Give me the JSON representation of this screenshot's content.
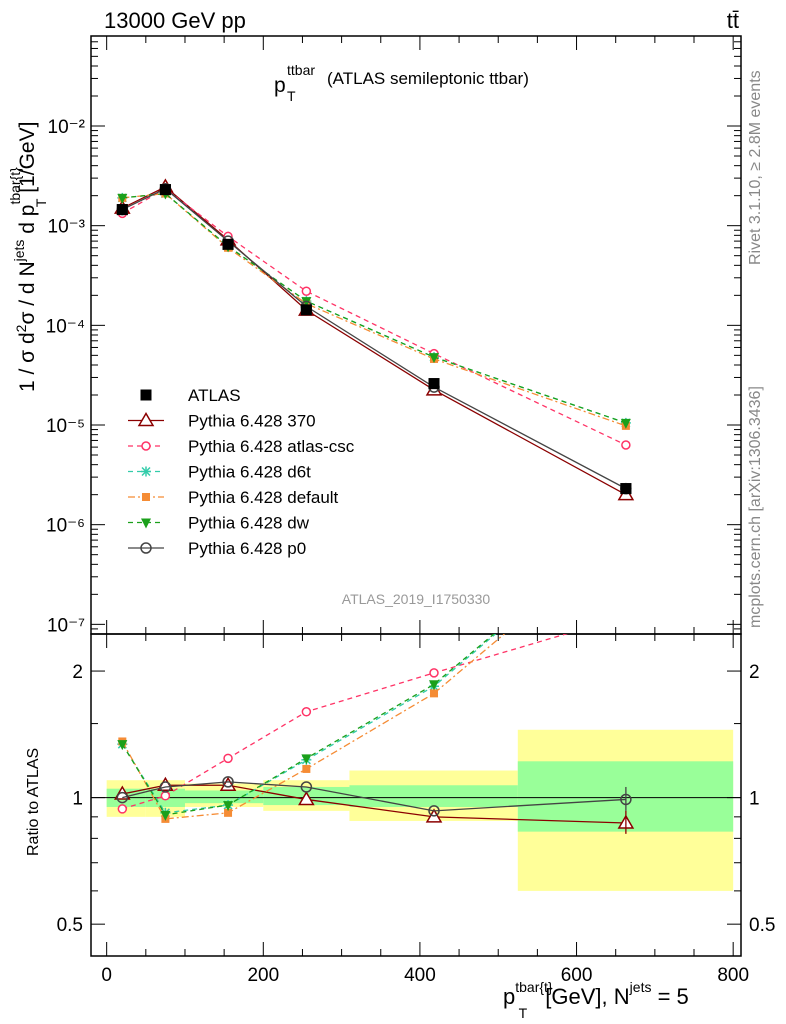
{
  "header": {
    "energy_label": "13000 GeV pp",
    "process_label": "tt̄"
  },
  "plot_title": {
    "main": "p",
    "sup": "ttbar",
    "sub": "T",
    "rest": "(ATLAS semileptonic ttbar)"
  },
  "side_labels": {
    "rivet": "Rivet 3.1.10, ≥ 2.8M events",
    "mcplots": "mcplots.cern.ch [arXiv:1306.3436]"
  },
  "analysis_tag": "ATLAS_2019_I1750330",
  "colors": {
    "atlas": "#000000",
    "p370": "#8b0000",
    "atlas_csc": "#ff3366",
    "d6t": "#33ccaa",
    "default": "#f58c35",
    "dw": "#1ba01b",
    "p0": "#444444",
    "band_inner": "#99ff99",
    "band_outer": "#ffff99"
  },
  "chart_data": [
    {
      "type": "line",
      "yscale": "log",
      "ylabel": "1 / σ d²σ / d N^jets d p_T^tbar{t} [1/GeV]",
      "ytick_labels": [
        "10⁻²",
        "10⁻³",
        "10⁻⁴",
        "10⁻⁵",
        "10⁻⁶",
        "10⁻⁷"
      ],
      "xlim": [
        -20,
        810
      ],
      "ylim": [
        8e-08,
        0.08
      ],
      "x": [
        20,
        75,
        155,
        255,
        418,
        663
      ],
      "series": [
        {
          "name": "ATLAS",
          "key": "atlas",
          "marker": "square",
          "values": [
            0.00145,
            0.0023,
            0.00065,
            0.000143,
            2.6e-05,
            2.3e-06
          ]
        },
        {
          "name": "Pythia 6.428 370",
          "key": "p370",
          "marker": "triangle",
          "values": [
            0.0015,
            0.00245,
            0.00072,
            0.000142,
            2.25e-05,
            2e-06
          ]
        },
        {
          "name": "Pythia 6.428 atlas-csc",
          "key": "atlas_csc",
          "marker": "circle-open",
          "values": [
            0.00133,
            0.00235,
            0.00078,
            0.00022,
            5.2e-05,
            6.3e-06
          ]
        },
        {
          "name": "Pythia 6.428 d6t",
          "key": "d6t",
          "marker": "star",
          "values": [
            0.0019,
            0.0021,
            0.00062,
            0.000175,
            4.8e-05,
            1.05e-05
          ]
        },
        {
          "name": "Pythia 6.428 default",
          "key": "default",
          "marker": "square-small",
          "values": [
            0.0019,
            0.0021,
            0.0006,
            0.000165,
            4.6e-05,
            9.8e-06
          ]
        },
        {
          "name": "Pythia 6.428 dw",
          "key": "dw",
          "marker": "triangle-down",
          "values": [
            0.0019,
            0.0021,
            0.00062,
            0.000175,
            4.8e-05,
            1.05e-05
          ]
        },
        {
          "name": "Pythia 6.428 p0",
          "key": "p0",
          "marker": "circle",
          "values": [
            0.00145,
            0.00235,
            0.0007,
            0.000155,
            2.4e-05,
            2.3e-06
          ]
        }
      ]
    },
    {
      "type": "line",
      "yscale": "log",
      "ylabel": "Ratio to ATLAS",
      "xlabel": "p_T^tbar{t} [GeV], N^jets = 5",
      "ylim": [
        0.42,
        2.45
      ],
      "xlim": [
        -20,
        810
      ],
      "ytick_labels": [
        "0.5",
        "1",
        "2"
      ],
      "xtick_labels": [
        "0",
        "200",
        "400",
        "600",
        "800"
      ],
      "bins": [
        {
          "lo": 0,
          "hi": 50,
          "inner": [
            0.95,
            1.05
          ],
          "outer": [
            0.9,
            1.1
          ]
        },
        {
          "lo": 50,
          "hi": 100,
          "inner": [
            0.95,
            1.05
          ],
          "outer": [
            0.9,
            1.1
          ]
        },
        {
          "lo": 100,
          "hi": 200,
          "inner": [
            0.97,
            1.04
          ],
          "outer": [
            0.95,
            1.08
          ]
        },
        {
          "lo": 200,
          "hi": 310,
          "inner": [
            0.96,
            1.06
          ],
          "outer": [
            0.93,
            1.1
          ]
        },
        {
          "lo": 310,
          "hi": 525,
          "inner": [
            0.95,
            1.07
          ],
          "outer": [
            0.88,
            1.16
          ]
        },
        {
          "lo": 525,
          "hi": 800,
          "inner": [
            0.83,
            1.22
          ],
          "outer": [
            0.6,
            1.45
          ]
        }
      ],
      "x": [
        20,
        75,
        155,
        255,
        418,
        663
      ],
      "series": [
        {
          "name": "Pythia 6.428 370",
          "key": "p370",
          "values": [
            1.02,
            1.07,
            1.07,
            0.99,
            0.9,
            0.87
          ]
        },
        {
          "name": "Pythia 6.428 atlas-csc",
          "key": "atlas_csc",
          "values": [
            0.94,
            1.01,
            1.24,
            1.6,
            1.98,
            2.7
          ]
        },
        {
          "name": "Pythia 6.428 d6t",
          "key": "d6t",
          "values": [
            1.34,
            0.92,
            0.96,
            1.23,
            1.84,
            4.5
          ]
        },
        {
          "name": "Pythia 6.428 default",
          "key": "default",
          "values": [
            1.36,
            0.89,
            0.92,
            1.17,
            1.77,
            4.3
          ]
        },
        {
          "name": "Pythia 6.428 dw",
          "key": "dw",
          "values": [
            1.34,
            0.91,
            0.96,
            1.24,
            1.86,
            4.5
          ]
        },
        {
          "name": "Pythia 6.428 p0",
          "key": "p0",
          "values": [
            1.0,
            1.06,
            1.09,
            1.06,
            0.93,
            0.99
          ]
        }
      ]
    }
  ]
}
